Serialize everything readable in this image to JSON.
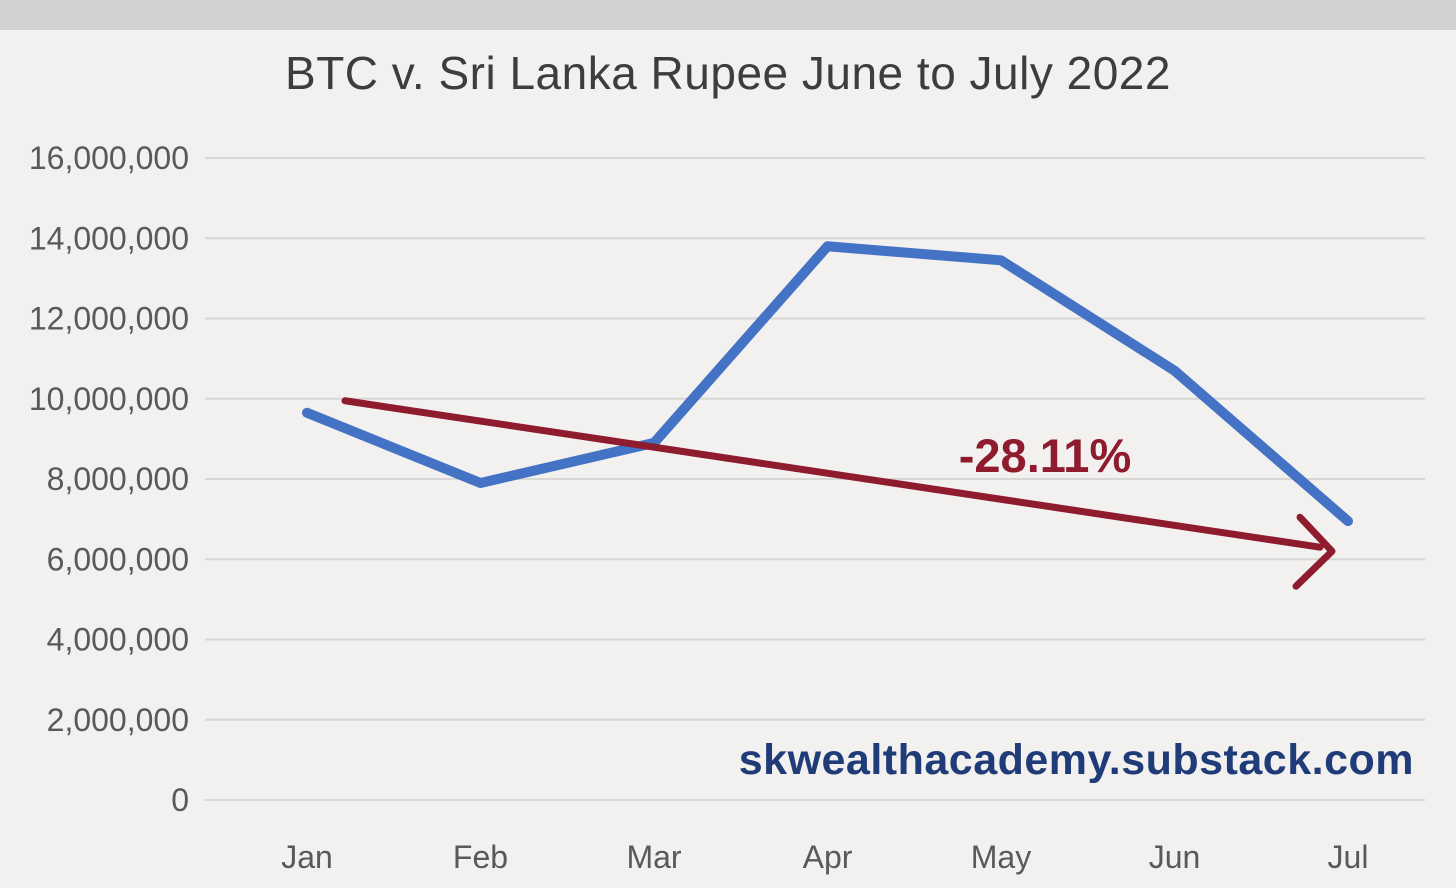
{
  "page": {
    "background": "#f2f1ef",
    "top_bar_color": "#d2d1cf"
  },
  "chart_data": {
    "type": "line",
    "title": "BTC v. Sri Lanka Rupee June to July 2022",
    "categories": [
      "Jan",
      "Feb",
      "Mar",
      "Apr",
      "May",
      "Jun",
      "Jul"
    ],
    "series": [
      {
        "color": "#4472c4",
        "values": [
          9650000,
          7900000,
          8900000,
          13800000,
          13450000,
          10700000,
          6950000
        ]
      }
    ],
    "ylim": [
      0,
      16000000
    ],
    "ytick_step": 2000000,
    "ytick_labels": [
      "0",
      "2,000,000",
      "4,000,000",
      "6,000,000",
      "8,000,000",
      "10,000,000",
      "12,000,000",
      "14,000,000",
      "16,000,000"
    ],
    "grid": "horizontal-only",
    "legend": "none",
    "axis_text_color": "#595959",
    "grid_color": "#d8d7d5",
    "annotation": {
      "label": "-28.11%",
      "color": "#8e1b2e",
      "arrow_start_category": "Jan",
      "arrow_start_value": 9950000,
      "arrow_end_category": "Jul",
      "arrow_end_value": 6300000
    },
    "watermark": {
      "text": "skwealthacademy.substack.com",
      "color": "#1f3c78"
    }
  }
}
